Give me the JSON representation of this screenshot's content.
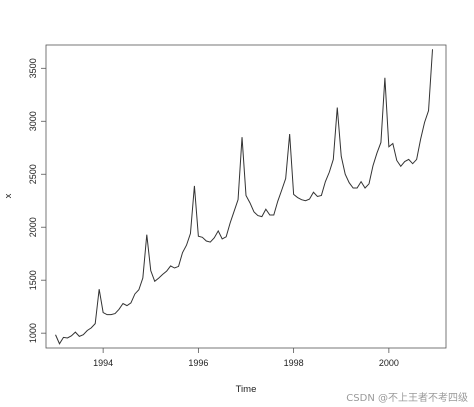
{
  "chart_data": {
    "type": "line",
    "xlabel": "Time",
    "ylabel": "x",
    "xlim": [
      1992.8,
      2001.2
    ],
    "ylim": [
      860,
      3720
    ],
    "x_ticks": [
      {
        "value": 1994,
        "label": "1994"
      },
      {
        "value": 1996,
        "label": "1996"
      },
      {
        "value": 1998,
        "label": "1998"
      },
      {
        "value": 2000,
        "label": "2000"
      }
    ],
    "y_ticks": [
      {
        "value": 1000,
        "label": "1000"
      },
      {
        "value": 1500,
        "label": "1500"
      },
      {
        "value": 2000,
        "label": "2000"
      },
      {
        "value": 2500,
        "label": "2500"
      },
      {
        "value": 3000,
        "label": "3000"
      },
      {
        "value": 3500,
        "label": "3500"
      }
    ],
    "grid": false,
    "series": [
      {
        "x_start": 1993,
        "frequency": 12,
        "color": "#333333",
        "values": [
          985,
          900,
          960,
          955,
          975,
          1010,
          970,
          985,
          1025,
          1050,
          1090,
          1415,
          1195,
          1175,
          1175,
          1185,
          1225,
          1280,
          1260,
          1285,
          1370,
          1410,
          1520,
          1930,
          1590,
          1490,
          1520,
          1555,
          1585,
          1635,
          1615,
          1630,
          1760,
          1830,
          1940,
          2390,
          1915,
          1905,
          1870,
          1860,
          1900,
          1965,
          1890,
          1910,
          2040,
          2150,
          2260,
          2850,
          2300,
          2230,
          2145,
          2110,
          2100,
          2170,
          2115,
          2115,
          2245,
          2350,
          2460,
          2880,
          2310,
          2280,
          2260,
          2250,
          2265,
          2330,
          2290,
          2300,
          2430,
          2520,
          2640,
          3130,
          2670,
          2500,
          2420,
          2370,
          2370,
          2430,
          2370,
          2410,
          2580,
          2700,
          2800,
          3410,
          2760,
          2790,
          2630,
          2575,
          2620,
          2640,
          2600,
          2640,
          2830,
          2990,
          3100,
          3680
        ]
      }
    ]
  },
  "watermark": "CSDN @不上王者不考四级"
}
